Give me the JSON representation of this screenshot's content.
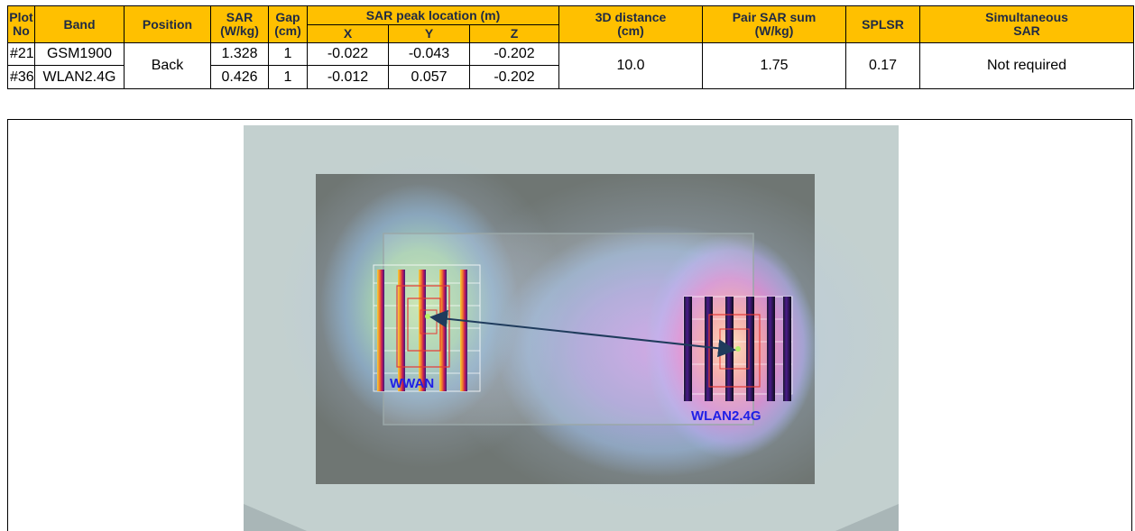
{
  "table": {
    "headers": {
      "plot_no": [
        "Plot",
        "No"
      ],
      "band": "Band",
      "position": "Position",
      "sar": [
        "SAR",
        "(W/kg)"
      ],
      "gap": [
        "Gap",
        "(cm)"
      ],
      "peak_location": "SAR peak location (m)",
      "x": "X",
      "y": "Y",
      "z": "Z",
      "distance": [
        "3D distance",
        "(cm)"
      ],
      "pair_sum": [
        "Pair SAR sum",
        "(W/kg)"
      ],
      "splsr": "SPLSR",
      "simultaneous": [
        "Simultaneous",
        "SAR"
      ]
    },
    "rows": [
      {
        "plot_no": "#21",
        "band": "GSM1900",
        "sar": "1.328",
        "gap": "1",
        "x": "-0.022",
        "y": "-0.043",
        "z": "-0.202"
      },
      {
        "plot_no": "#36",
        "band": "WLAN2.4G",
        "sar": "0.426",
        "gap": "1",
        "x": "-0.012",
        "y": "0.057",
        "z": "-0.202"
      }
    ],
    "shared": {
      "position": "Back",
      "distance": "10.0",
      "pair_sum": "1.75",
      "splsr": "0.17",
      "simultaneous": "Not required"
    }
  },
  "plot": {
    "label_left": "WWAN",
    "label_right": "WLAN2.4G",
    "label_color": "#1f1fe6",
    "arrow_color": "#1f3b5c"
  }
}
